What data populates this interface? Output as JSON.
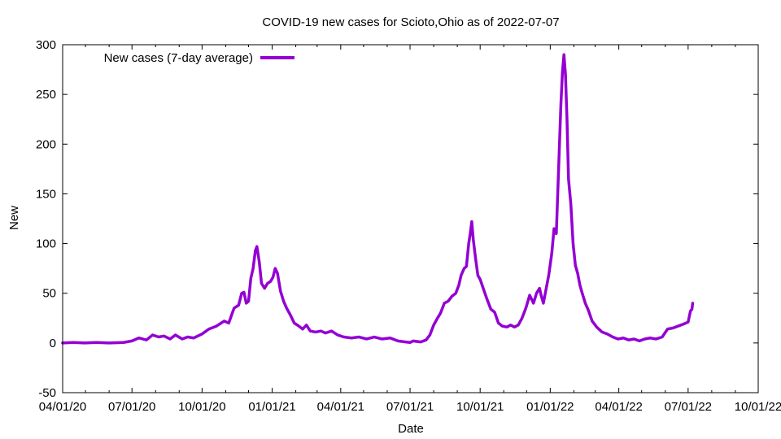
{
  "chart_data": {
    "type": "line",
    "title": "COVID-19 new cases for Scioto,Ohio as of 2022-07-07",
    "xlabel": "Date",
    "ylabel": "New",
    "x_range": [
      "2020-04-01",
      "2022-10-01"
    ],
    "ylim": [
      -50,
      300
    ],
    "y_ticks": [
      -50,
      0,
      50,
      100,
      150,
      200,
      250,
      300
    ],
    "x_ticks": [
      {
        "date": "2020-04-01",
        "label": "04/01/20"
      },
      {
        "date": "2020-07-01",
        "label": "07/01/20"
      },
      {
        "date": "2020-10-01",
        "label": "10/01/20"
      },
      {
        "date": "2021-01-01",
        "label": "01/01/21"
      },
      {
        "date": "2021-04-01",
        "label": "04/01/21"
      },
      {
        "date": "2021-07-01",
        "label": "07/01/21"
      },
      {
        "date": "2021-10-01",
        "label": "10/01/21"
      },
      {
        "date": "2022-01-01",
        "label": "01/01/22"
      },
      {
        "date": "2022-04-01",
        "label": "04/01/22"
      },
      {
        "date": "2022-07-01",
        "label": "07/01/22"
      },
      {
        "date": "2022-10-01",
        "label": "10/01/22"
      }
    ],
    "grid": false,
    "legend_position": "top-left",
    "series": [
      {
        "name": "New cases (7-day average)",
        "color": "#9400d3",
        "points": [
          [
            "2020-04-01",
            0
          ],
          [
            "2020-04-15",
            0.5
          ],
          [
            "2020-04-30",
            0
          ],
          [
            "2020-05-15",
            0.5
          ],
          [
            "2020-06-01",
            0
          ],
          [
            "2020-06-20",
            0.5
          ],
          [
            "2020-07-01",
            2
          ],
          [
            "2020-07-10",
            5
          ],
          [
            "2020-07-20",
            3
          ],
          [
            "2020-07-28",
            8
          ],
          [
            "2020-08-05",
            6
          ],
          [
            "2020-08-12",
            7
          ],
          [
            "2020-08-20",
            4
          ],
          [
            "2020-08-27",
            8
          ],
          [
            "2020-09-05",
            4
          ],
          [
            "2020-09-12",
            6
          ],
          [
            "2020-09-20",
            5
          ],
          [
            "2020-10-01",
            9
          ],
          [
            "2020-10-10",
            14
          ],
          [
            "2020-10-20",
            17
          ],
          [
            "2020-10-30",
            22
          ],
          [
            "2020-11-05",
            20
          ],
          [
            "2020-11-12",
            35
          ],
          [
            "2020-11-18",
            38
          ],
          [
            "2020-11-22",
            50
          ],
          [
            "2020-11-25",
            51
          ],
          [
            "2020-11-28",
            40
          ],
          [
            "2020-12-01",
            42
          ],
          [
            "2020-12-04",
            65
          ],
          [
            "2020-12-07",
            75
          ],
          [
            "2020-12-10",
            93
          ],
          [
            "2020-12-12",
            97
          ],
          [
            "2020-12-15",
            82
          ],
          [
            "2020-12-18",
            60
          ],
          [
            "2020-12-22",
            55
          ],
          [
            "2020-12-26",
            60
          ],
          [
            "2020-12-30",
            62
          ],
          [
            "2021-01-02",
            66
          ],
          [
            "2021-01-05",
            75
          ],
          [
            "2021-01-08",
            70
          ],
          [
            "2021-01-12",
            52
          ],
          [
            "2021-01-16",
            42
          ],
          [
            "2021-01-20",
            35
          ],
          [
            "2021-01-25",
            28
          ],
          [
            "2021-01-30",
            20
          ],
          [
            "2021-02-05",
            17
          ],
          [
            "2021-02-10",
            14
          ],
          [
            "2021-02-15",
            18
          ],
          [
            "2021-02-20",
            12
          ],
          [
            "2021-02-27",
            11
          ],
          [
            "2021-03-06",
            12
          ],
          [
            "2021-03-12",
            10
          ],
          [
            "2021-03-20",
            12
          ],
          [
            "2021-03-28",
            8
          ],
          [
            "2021-04-05",
            6
          ],
          [
            "2021-04-15",
            5
          ],
          [
            "2021-04-25",
            6
          ],
          [
            "2021-05-05",
            4
          ],
          [
            "2021-05-15",
            6
          ],
          [
            "2021-05-25",
            4
          ],
          [
            "2021-06-05",
            5
          ],
          [
            "2021-06-15",
            2
          ],
          [
            "2021-06-25",
            1
          ],
          [
            "2021-07-01",
            0.5
          ],
          [
            "2021-07-05",
            2
          ],
          [
            "2021-07-15",
            1
          ],
          [
            "2021-07-22",
            3
          ],
          [
            "2021-07-27",
            8
          ],
          [
            "2021-08-01",
            18
          ],
          [
            "2021-08-06",
            25
          ],
          [
            "2021-08-10",
            30
          ],
          [
            "2021-08-15",
            40
          ],
          [
            "2021-08-20",
            42
          ],
          [
            "2021-08-25",
            47
          ],
          [
            "2021-08-30",
            50
          ],
          [
            "2021-09-03",
            58
          ],
          [
            "2021-09-06",
            68
          ],
          [
            "2021-09-10",
            75
          ],
          [
            "2021-09-13",
            77
          ],
          [
            "2021-09-16",
            100
          ],
          [
            "2021-09-18",
            110
          ],
          [
            "2021-09-20",
            122
          ],
          [
            "2021-09-22",
            104
          ],
          [
            "2021-09-25",
            85
          ],
          [
            "2021-09-28",
            68
          ],
          [
            "2021-10-01",
            64
          ],
          [
            "2021-10-05",
            55
          ],
          [
            "2021-10-10",
            44
          ],
          [
            "2021-10-15",
            34
          ],
          [
            "2021-10-20",
            31
          ],
          [
            "2021-10-25",
            20
          ],
          [
            "2021-10-30",
            17
          ],
          [
            "2021-11-05",
            16
          ],
          [
            "2021-11-10",
            18
          ],
          [
            "2021-11-15",
            16
          ],
          [
            "2021-11-20",
            18
          ],
          [
            "2021-11-25",
            25
          ],
          [
            "2021-11-30",
            35
          ],
          [
            "2021-12-05",
            48
          ],
          [
            "2021-12-10",
            40
          ],
          [
            "2021-12-14",
            50
          ],
          [
            "2021-12-18",
            55
          ],
          [
            "2021-12-20",
            48
          ],
          [
            "2021-12-23",
            40
          ],
          [
            "2021-12-26",
            52
          ],
          [
            "2021-12-30",
            68
          ],
          [
            "2022-01-03",
            90
          ],
          [
            "2022-01-06",
            115
          ],
          [
            "2022-01-09",
            110
          ],
          [
            "2022-01-12",
            175
          ],
          [
            "2022-01-15",
            240
          ],
          [
            "2022-01-17",
            272
          ],
          [
            "2022-01-19",
            290
          ],
          [
            "2022-01-21",
            270
          ],
          [
            "2022-01-23",
            225
          ],
          [
            "2022-01-25",
            165
          ],
          [
            "2022-01-28",
            140
          ],
          [
            "2022-01-31",
            100
          ],
          [
            "2022-02-03",
            78
          ],
          [
            "2022-02-06",
            70
          ],
          [
            "2022-02-09",
            58
          ],
          [
            "2022-02-12",
            50
          ],
          [
            "2022-02-16",
            40
          ],
          [
            "2022-02-20",
            33
          ],
          [
            "2022-02-25",
            22
          ],
          [
            "2022-03-03",
            16
          ],
          [
            "2022-03-10",
            11
          ],
          [
            "2022-03-17",
            9
          ],
          [
            "2022-03-24",
            6
          ],
          [
            "2022-03-31",
            4
          ],
          [
            "2022-04-07",
            5
          ],
          [
            "2022-04-14",
            3
          ],
          [
            "2022-04-21",
            4
          ],
          [
            "2022-04-28",
            2
          ],
          [
            "2022-05-05",
            4
          ],
          [
            "2022-05-12",
            5
          ],
          [
            "2022-05-20",
            4
          ],
          [
            "2022-05-28",
            6
          ],
          [
            "2022-06-04",
            14
          ],
          [
            "2022-06-11",
            15
          ],
          [
            "2022-06-18",
            17
          ],
          [
            "2022-06-25",
            19
          ],
          [
            "2022-07-01",
            21
          ],
          [
            "2022-07-04",
            32
          ],
          [
            "2022-07-06",
            34
          ],
          [
            "2022-07-07",
            40
          ]
        ]
      }
    ]
  }
}
